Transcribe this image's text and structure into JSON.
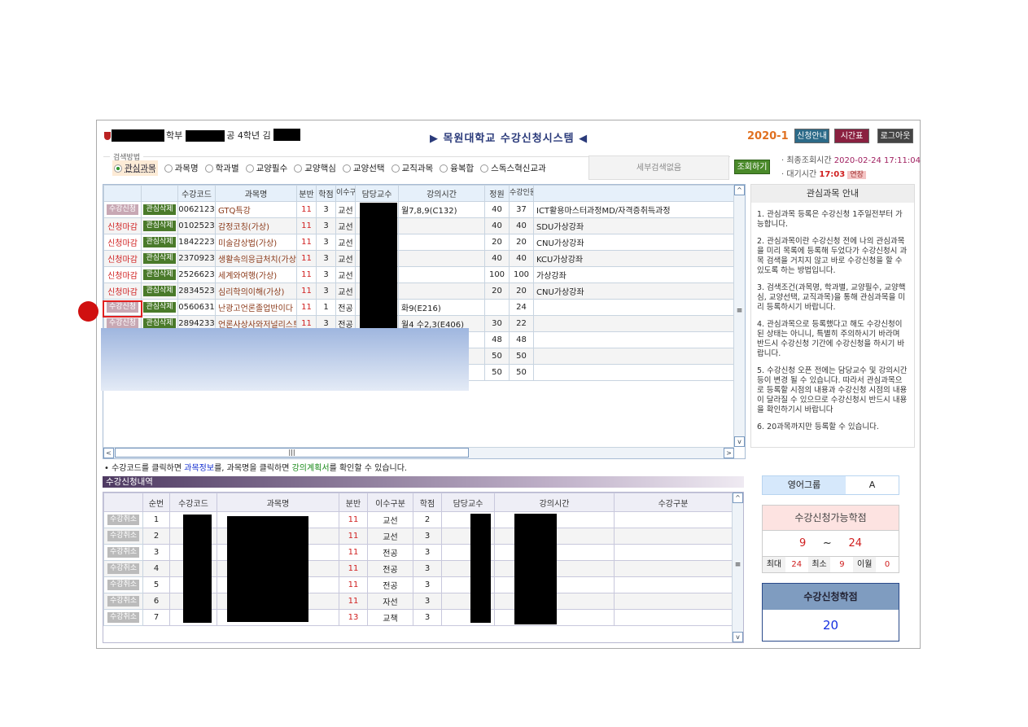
{
  "header": {
    "user_dept_suffix": "학부",
    "user_major_suffix": "공 4학년 김",
    "title_left": "▶",
    "title": "목원대학교 수강신청시스템",
    "title_right": "◀",
    "semester": "2020-1",
    "buttons": [
      {
        "label": "신청안내",
        "color": "#2c6a88"
      },
      {
        "label": "시간표",
        "color": "#8a2040"
      },
      {
        "label": "로그아웃",
        "color": "#444444"
      }
    ]
  },
  "search": {
    "legend": "검색방법",
    "options": [
      "관심과목",
      "과목명",
      "학과별",
      "교양필수",
      "교양핵심",
      "교양선택",
      "교직과목",
      "융복합",
      "스독스혁신교과"
    ],
    "selected": "관심과목",
    "detail_placeholder": "세부검색없음",
    "submit": "조회하기",
    "last_query_label": "최종조회시간",
    "last_query_value": "2020-02-24 17:11:04",
    "wait_label": "대기시간",
    "wait_value": "17:03",
    "extend": "연장"
  },
  "courses": {
    "headers": [
      "",
      "",
      "수강코드",
      "과목명",
      "분반",
      "학점",
      "이수구분",
      "담당교수",
      "강의시간",
      "정원",
      "수강인원",
      ""
    ],
    "rows": [
      {
        "status": "수강신청",
        "status_type": "apply",
        "interest": "관심삭제",
        "code": "0062123",
        "name": "GTQ특강",
        "section": "11",
        "credit": "3",
        "type": "교선",
        "time": "월7,8,9(C132)",
        "cap": "40",
        "enrolled": "37",
        "note": "ICT활용마스터과정MD/자격증취득과정"
      },
      {
        "status": "신청마감",
        "status_type": "closed",
        "interest": "관심삭제",
        "code": "0102523",
        "name": "감정코칭(가상)",
        "section": "11",
        "credit": "3",
        "type": "교선",
        "time": "",
        "cap": "40",
        "enrolled": "40",
        "note": "SDU가상강좌"
      },
      {
        "status": "신청마감",
        "status_type": "closed",
        "interest": "관심삭제",
        "code": "1842223",
        "name": "미술감상법(가상)",
        "section": "11",
        "credit": "3",
        "type": "교선",
        "time": "",
        "cap": "20",
        "enrolled": "20",
        "note": "CNU가상강좌"
      },
      {
        "status": "신청마감",
        "status_type": "closed",
        "interest": "관심삭제",
        "code": "2370923",
        "name": "생활속의응급처치(가상",
        "section": "11",
        "credit": "3",
        "type": "교선",
        "time": "",
        "cap": "40",
        "enrolled": "40",
        "note": "KCU가상강좌"
      },
      {
        "status": "신청마감",
        "status_type": "closed",
        "interest": "관심삭제",
        "code": "2526623",
        "name": "세계와여행(가상)",
        "section": "11",
        "credit": "3",
        "type": "교선",
        "time": "",
        "cap": "100",
        "enrolled": "100",
        "note": "가상강좌"
      },
      {
        "status": "신청마감",
        "status_type": "closed",
        "interest": "관심삭제",
        "code": "2834523",
        "name": "심리학의이해(가상)",
        "section": "11",
        "credit": "3",
        "type": "교선",
        "time": "",
        "cap": "20",
        "enrolled": "20",
        "note": "CNU가상강좌"
      },
      {
        "status": "수강신청",
        "status_type": "apply",
        "interest": "관심삭제",
        "code": "0560631",
        "name": "난광고언론졸업반이다",
        "section": "11",
        "credit": "1",
        "type": "전공",
        "time": "화9(E216)",
        "cap": "",
        "enrolled": "24",
        "note": ""
      },
      {
        "status": "수강신청",
        "status_type": "apply",
        "interest": "관심삭제",
        "code": "2894233",
        "name": "언론사상사와저널리스트",
        "section": "11",
        "credit": "3",
        "type": "전공",
        "time": "월4 수2,3(E406)",
        "cap": "30",
        "enrolled": "22",
        "note": ""
      },
      {
        "status": "",
        "status_type": "",
        "interest": "",
        "code": "",
        "name": "",
        "section": "",
        "credit": "",
        "type": "",
        "time": "",
        "cap": "48",
        "enrolled": "48",
        "note": ""
      },
      {
        "status": "",
        "status_type": "",
        "interest": "",
        "code": "",
        "name": "",
        "section": "",
        "credit": "",
        "type": "",
        "time": "",
        "cap": "50",
        "enrolled": "50",
        "note": ""
      },
      {
        "status": "",
        "status_type": "",
        "interest": "",
        "code": "",
        "name": "",
        "section": "",
        "credit": "",
        "type": "",
        "time": "",
        "cap": "50",
        "enrolled": "50",
        "note": ""
      }
    ]
  },
  "info": {
    "title": "관심과목 안내",
    "items": [
      "1. 관심과목 등록은 수강신청 1주일전부터 가능합니다.",
      "2. 관심과목이란 수강신청 전에 나의 관심과목을 미리 목록에 등록해 두었다가 수강신청시 과목 검색을 거치지 않고 바로 수강신청을 할 수 있도록 하는 방법입니다.",
      "3. 검색조건(과목명, 학과별, 교양필수, 교양핵심, 교양선택, 교직과목)을 통해 관심과목을 미리 등록하시기 바랍니다.",
      "4. 관심과목으로 등록했다고 해도 수강신청이 된 상태는 아니니, 특별히 주의하시기 바라며 반드시 수강신청 기간에 수강신청을 하시기 바랍니다.",
      "5. 수강신청 오픈 전에는 담당교수 및 강의시간 등이 변경 될 수 있습니다. 따라서 관심과목으로 등록할 시점의 내용과 수강신청 시점의 내용이 달라질 수 있으므로 수강신청시 반드시 내용을 확인하기시 바랍니다",
      "6. 20과목까지만 등록할 수 있습니다."
    ]
  },
  "hint": {
    "prefix": "• 수강코드를 클릭하면 ",
    "link1": "과목정보",
    "mid": "를, 과목명을 클릭하면 ",
    "link2": "강의계획서",
    "suffix": "를 확인할 수 있습니다."
  },
  "enrolled": {
    "title": "수강신청내역",
    "headers": [
      "",
      "순번",
      "수강코드",
      "과목명",
      "분반",
      "이수구분",
      "학점",
      "담당교수",
      "강의시간",
      "수강구분"
    ],
    "rows": [
      {
        "cancel": "수강취소",
        "no": "1",
        "section": "11",
        "type": "교선",
        "credit": "2"
      },
      {
        "cancel": "수강취소",
        "no": "2",
        "section": "11",
        "type": "교선",
        "credit": "3"
      },
      {
        "cancel": "수강취소",
        "no": "3",
        "section": "11",
        "type": "전공",
        "credit": "3"
      },
      {
        "cancel": "수강취소",
        "no": "4",
        "section": "11",
        "type": "전공",
        "credit": "3"
      },
      {
        "cancel": "수강취소",
        "no": "5",
        "section": "11",
        "type": "전공",
        "credit": "3"
      },
      {
        "cancel": "수강취소",
        "no": "6",
        "section": "11",
        "type": "자선",
        "credit": "3"
      },
      {
        "cancel": "수강취소",
        "no": "7",
        "section": "13",
        "type": "교책",
        "credit": "3"
      }
    ]
  },
  "english_group": {
    "label": "영어그룹",
    "value": "A"
  },
  "credit_range": {
    "title": "수강신청가능학점",
    "min": "9",
    "sep": "~",
    "max": "24",
    "max_label": "최대",
    "max_value": "24",
    "min_label": "최소",
    "min_value": "9",
    "carry_label": "이월",
    "carry_value": "0"
  },
  "applied_credits": {
    "title": "수강신청학점",
    "value": "20"
  }
}
